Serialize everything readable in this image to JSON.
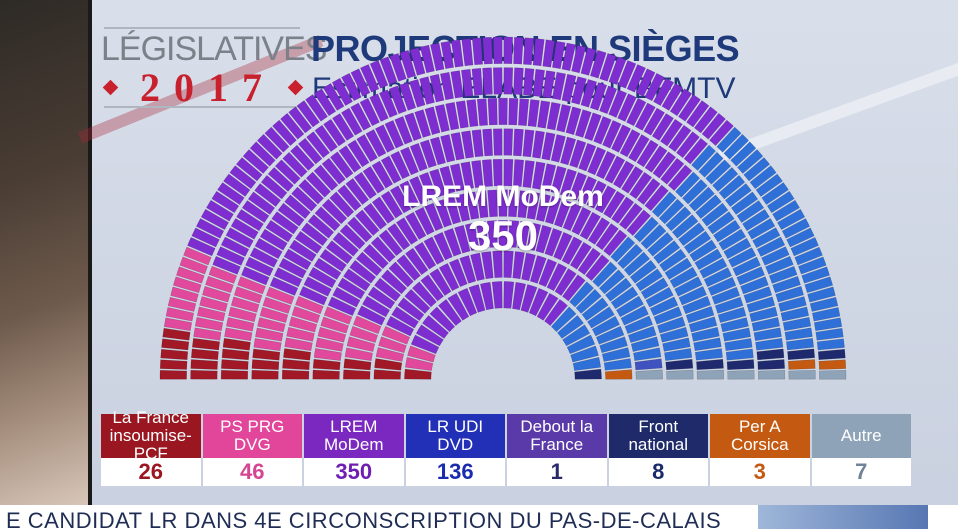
{
  "header": {
    "legislatives": "LÉGISLATIVES",
    "year": "2017",
    "title": "PROJECTION EN SIÈGES",
    "subtitle": "Estimation ELABE pour BFMTV"
  },
  "highlight": {
    "name": "LREM MoDem",
    "value": "350"
  },
  "parties": [
    {
      "label": "La France insoumise-PCF",
      "seats": "26",
      "head_color": "#9a1620",
      "value_color": "#9a1620",
      "seat_color": "#a11826"
    },
    {
      "label": "PS PRG DVG",
      "seats": "46",
      "head_color": "#e2469a",
      "value_color": "#d64592",
      "seat_color": "#e0499c"
    },
    {
      "label": "LREM MoDem",
      "seats": "350",
      "head_color": "#7a28c0",
      "value_color": "#6e1fb2",
      "seat_color": "#7e2dd0"
    },
    {
      "label": "LR UDI DVD",
      "seats": "136",
      "head_color": "#2230b8",
      "value_color": "#1a2bb0",
      "seat_color": "#2f6fd8"
    },
    {
      "label": "Debout la France",
      "seats": "1",
      "head_color": "#5a3aa8",
      "value_color": "#2a2a6a",
      "seat_color": "#3f52c0"
    },
    {
      "label": "Front national",
      "seats": "8",
      "head_color": "#1f2a6a",
      "value_color": "#1a2a6a",
      "seat_color": "#1f2a6e"
    },
    {
      "label": "Per A Corsica",
      "seats": "3",
      "head_color": "#c45a12",
      "value_color": "#c45a12",
      "seat_color": "#c45a12"
    },
    {
      "label": "Autre",
      "seats": "7",
      "head_color": "#8ea2b8",
      "value_color": "#6f8298",
      "seat_color": "#8ea2b8"
    }
  ],
  "ticker": {
    "text": "E  CANDIDAT LR DANS 4E CIRCONSCRIPTION DU PAS-DE-CALAIS"
  }
}
